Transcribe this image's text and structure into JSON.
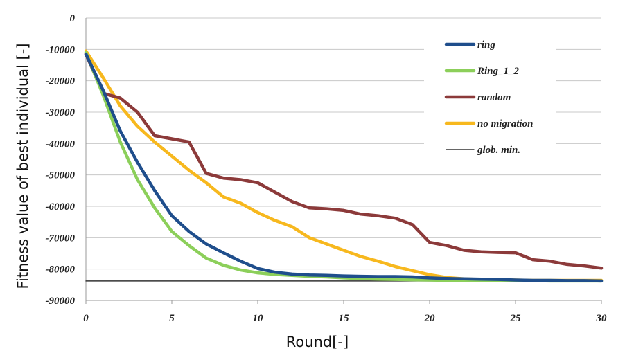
{
  "chart_data": {
    "type": "line",
    "xlabel": "Round[-]",
    "ylabel": "Fitness value of best individual [-]",
    "xlim": [
      0,
      30
    ],
    "ylim": [
      -90000,
      0
    ],
    "xticks": [
      0,
      5,
      10,
      15,
      20,
      25,
      30
    ],
    "yticks": [
      0,
      -10000,
      -20000,
      -30000,
      -40000,
      -50000,
      -60000,
      -70000,
      -80000,
      -90000
    ],
    "grid": "horizontal",
    "legend_position": "top-right",
    "x": [
      0,
      1,
      2,
      3,
      4,
      5,
      6,
      7,
      8,
      9,
      10,
      11,
      12,
      13,
      14,
      15,
      16,
      17,
      18,
      19,
      20,
      21,
      22,
      23,
      24,
      25,
      26,
      27,
      28,
      29,
      30
    ],
    "series": [
      {
        "name": "ring",
        "color": "#1f4e8c",
        "values": [
          -11500,
          -23000,
          -36000,
          -46000,
          -55000,
          -63000,
          -68000,
          -72000,
          -74800,
          -77500,
          -79800,
          -81000,
          -81600,
          -81900,
          -82000,
          -82200,
          -82300,
          -82400,
          -82400,
          -82500,
          -82800,
          -83000,
          -83100,
          -83200,
          -83300,
          -83500,
          -83600,
          -83600,
          -83700,
          -83700,
          -83800
        ]
      },
      {
        "name": "Ring_1_2",
        "color": "#8ccf5a",
        "values": [
          -11000,
          -24500,
          -39500,
          -51500,
          -60500,
          -68000,
          -72500,
          -76500,
          -78800,
          -80300,
          -81200,
          -81700,
          -82000,
          -82300,
          -82500,
          -82800,
          -83000,
          -83200,
          -83300,
          -83400,
          -83500,
          -83600,
          -83600,
          -83600,
          -83700,
          -83700,
          -83700,
          -83800,
          -83800,
          -83800,
          -83800
        ]
      },
      {
        "name": "random",
        "color": "#8c3a3a",
        "values": [
          -11500,
          -24000,
          -25500,
          -30000,
          -37500,
          -38500,
          -39500,
          -49500,
          -51000,
          -51500,
          -52500,
          -55500,
          -58500,
          -60500,
          -60800,
          -61300,
          -62500,
          -63000,
          -63800,
          -65800,
          -71500,
          -72500,
          -74000,
          -74500,
          -74700,
          -74800,
          -77000,
          -77500,
          -78500,
          -79000,
          -79700
        ]
      },
      {
        "name": "no migration",
        "color": "#f7b81e",
        "values": [
          -10500,
          -19000,
          -28000,
          -34500,
          -39500,
          -44000,
          -48500,
          -52500,
          -57000,
          -59000,
          -62000,
          -64500,
          -66500,
          -70000,
          -72000,
          -74000,
          -76000,
          -77500,
          -79200,
          -80500,
          -81800,
          -82700,
          -83100,
          -83300,
          -83400,
          -83500,
          -83600,
          -83600,
          -83600,
          -83600,
          -83600
        ]
      },
      {
        "name": "glob. min.",
        "color": "#333333",
        "values": [
          -83800,
          -83800,
          -83800,
          -83800,
          -83800,
          -83800,
          -83800,
          -83800,
          -83800,
          -83800,
          -83800,
          -83800,
          -83800,
          -83800,
          -83800,
          -83800,
          -83800,
          -83800,
          -83800,
          -83800,
          -83800,
          -83800,
          -83800,
          -83800,
          -83800,
          -83800,
          -83800,
          -83800,
          -83800,
          -83800,
          -83800
        ]
      }
    ]
  }
}
